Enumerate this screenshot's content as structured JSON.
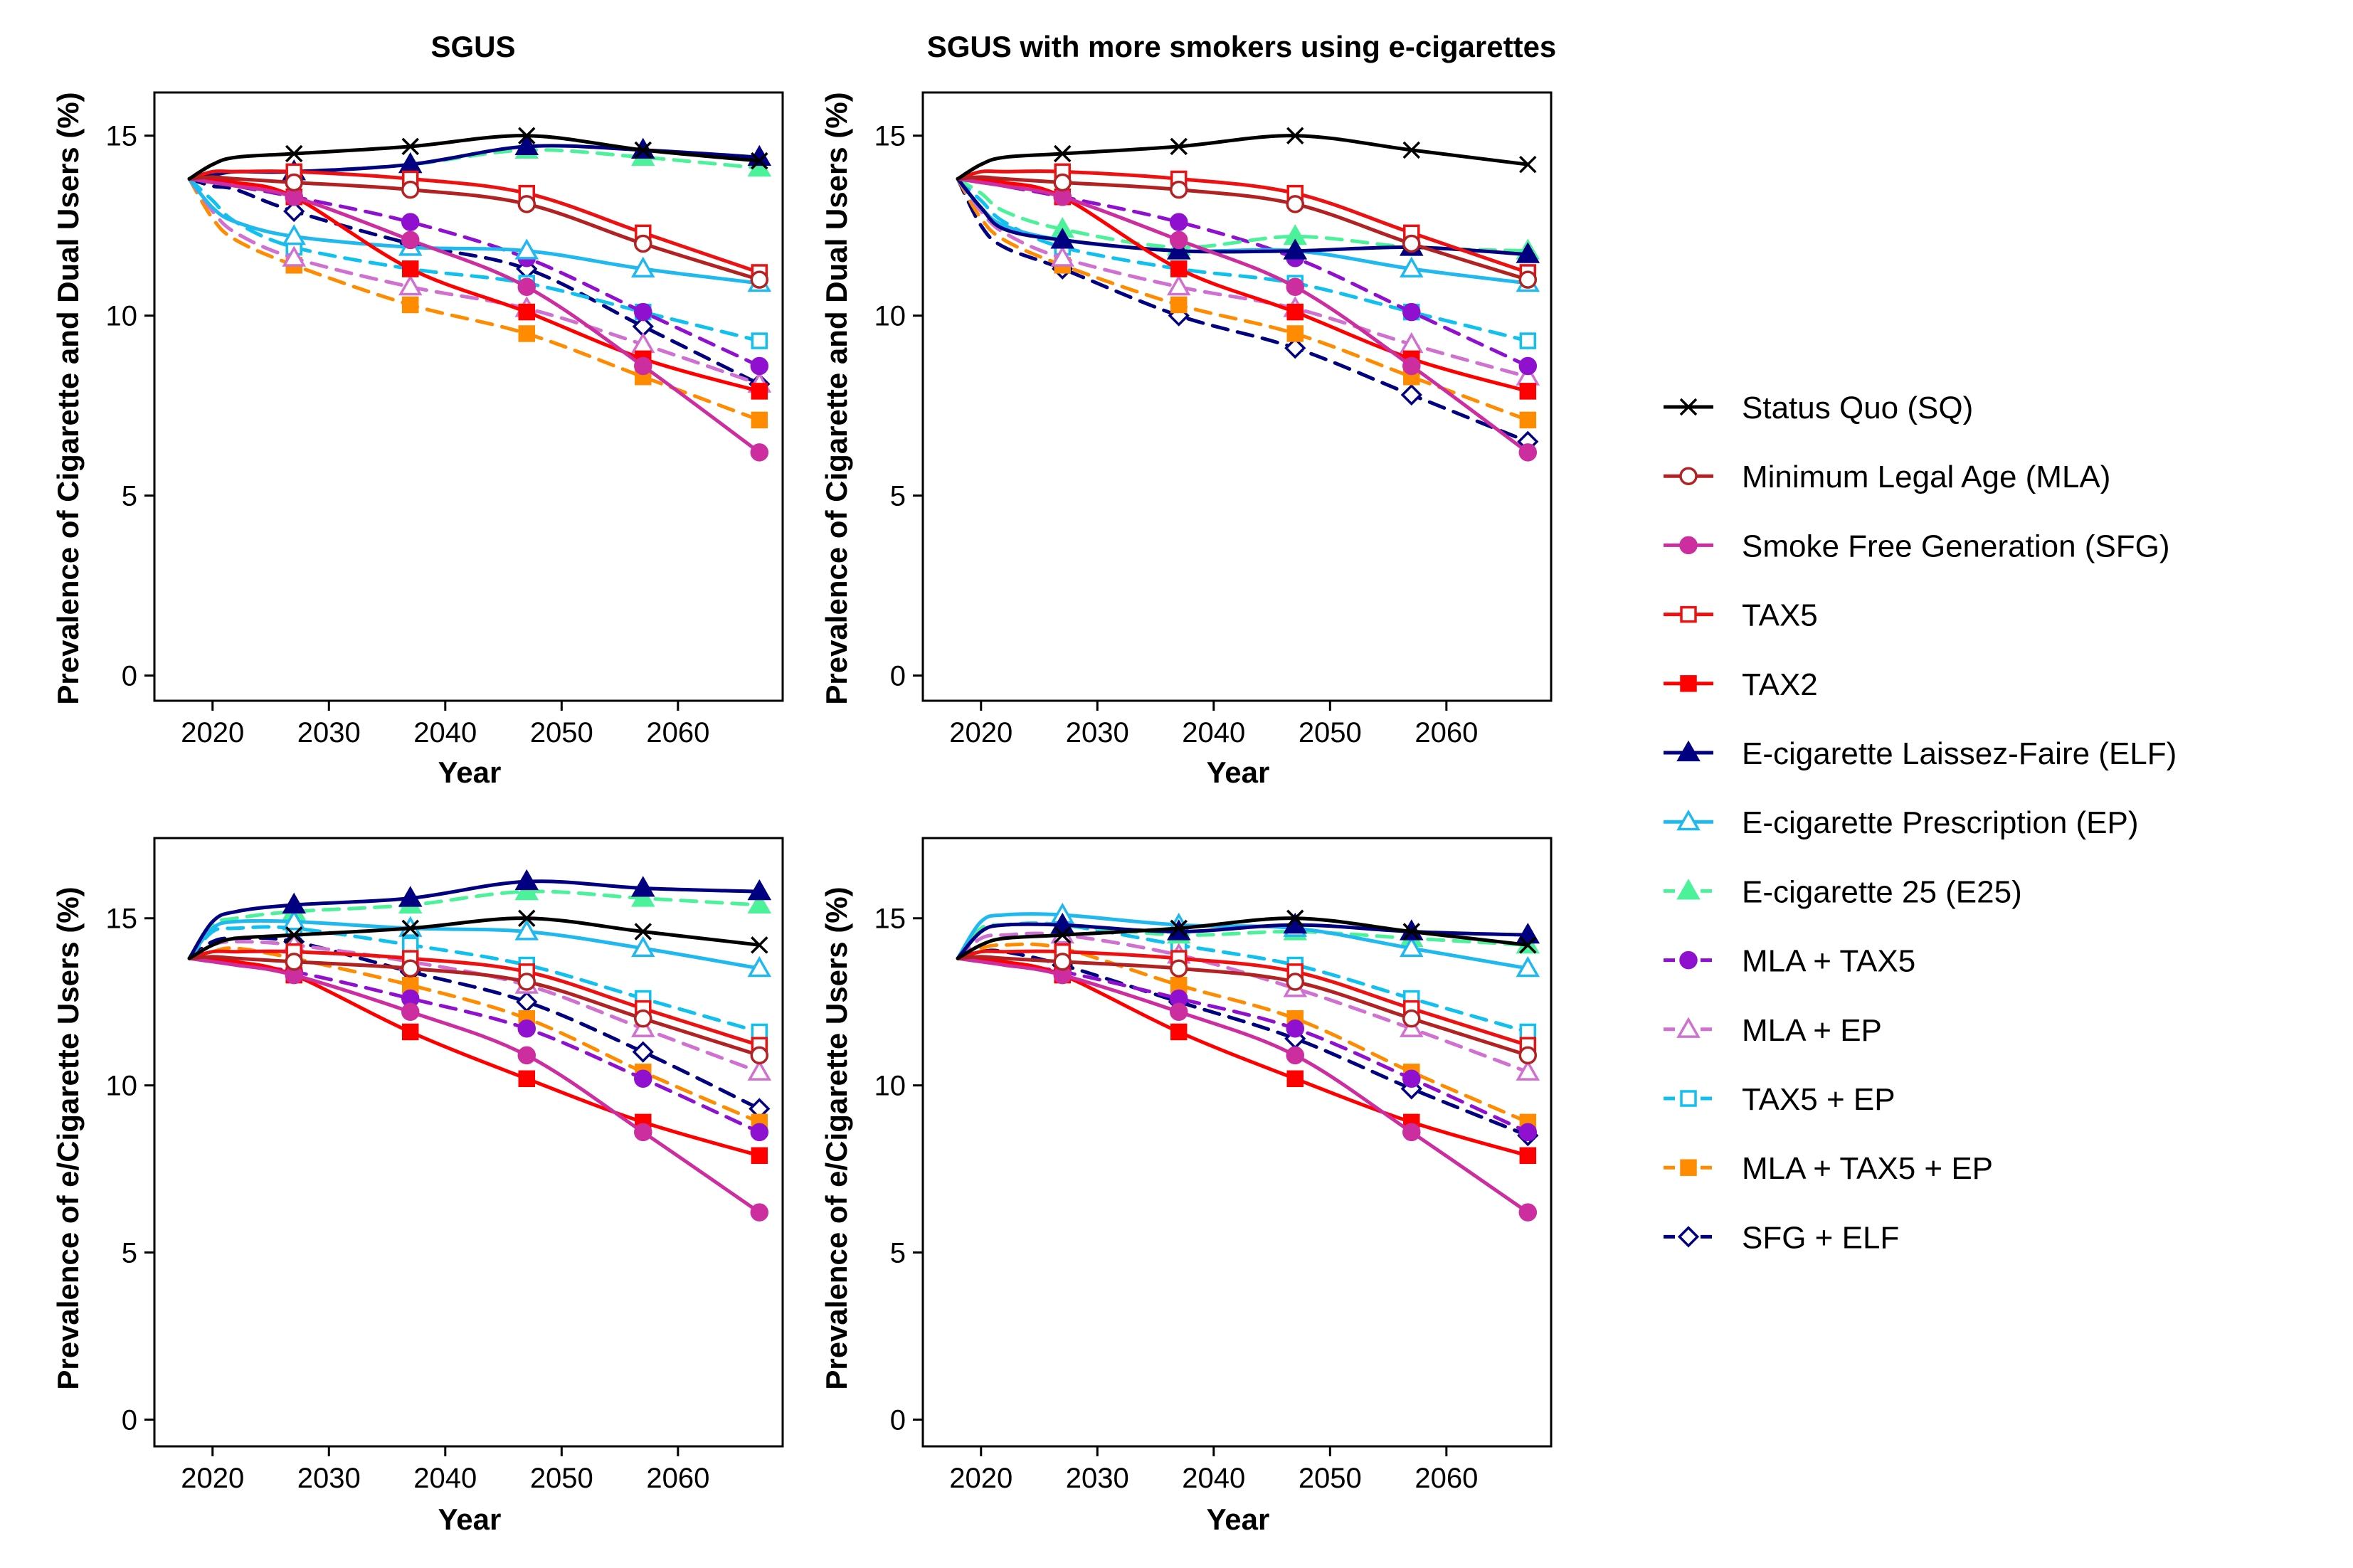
{
  "chart_data": {
    "type": "line",
    "x": [
      2018,
      2020,
      2022,
      2027,
      2037,
      2047,
      2057,
      2067
    ],
    "xlim": [
      2015,
      2069
    ],
    "xticks": [
      2020,
      2030,
      2040,
      2050,
      2060
    ],
    "yticks": [
      0,
      5,
      10,
      15
    ],
    "xlabel": "Year",
    "legend_position": "right",
    "legend": [
      {
        "key": "SQ",
        "label": "Status Quo (SQ)",
        "color": "#000000",
        "marker": "cross",
        "dash": false
      },
      {
        "key": "MLA",
        "label": "Minimum Legal Age (MLA)",
        "color": "#b22222",
        "marker": "circle-open",
        "dash": false
      },
      {
        "key": "SFG",
        "label": "Smoke Free Generation (SFG)",
        "color": "#cc2ea0",
        "marker": "circle-filled",
        "dash": false
      },
      {
        "key": "TAX5",
        "label": "TAX5",
        "color": "#ee1111",
        "marker": "square-open",
        "dash": false
      },
      {
        "key": "TAX2",
        "label": "TAX2",
        "color": "#ff0000",
        "marker": "square-filled",
        "dash": false
      },
      {
        "key": "ELF",
        "label": "E-cigarette Laissez-Faire (ELF)",
        "color": "#000080",
        "marker": "triangle-filled",
        "dash": false
      },
      {
        "key": "EP",
        "label": "E-cigarette Prescription (EP)",
        "color": "#1fb8ef",
        "marker": "triangle-open",
        "dash": false
      },
      {
        "key": "E25",
        "label": "E-cigarette 25 (E25)",
        "color": "#4cf29a",
        "marker": "triangle-filled",
        "dash": true
      },
      {
        "key": "MLA_TAX5",
        "label": "MLA + TAX5",
        "color": "#9010d0",
        "marker": "circle-filled",
        "dash": true
      },
      {
        "key": "MLA_EP",
        "label": "MLA + EP",
        "color": "#d070d0",
        "marker": "triangle-open",
        "dash": true
      },
      {
        "key": "TAX5_EP",
        "label": "TAX5 + EP",
        "color": "#10c0ee",
        "marker": "square-open",
        "dash": true
      },
      {
        "key": "MLA_TAX5_EP",
        "label": "MLA + TAX5 + EP",
        "color": "#ff8c00",
        "marker": "square-filled",
        "dash": true
      },
      {
        "key": "SFG_ELF",
        "label": "SFG + ELF",
        "color": "#000080",
        "marker": "diamond-open",
        "dash": true
      }
    ],
    "panels": [
      {
        "title": "SGUS",
        "ylabel": "Prevalence of Cigarette and Dual Users (%)",
        "ylim": [
          -0.7,
          16.2
        ],
        "series": {
          "SQ": [
            13.8,
            14.2,
            14.4,
            14.5,
            14.7,
            15.0,
            14.6,
            14.3
          ],
          "MLA": [
            13.8,
            13.85,
            13.8,
            13.7,
            13.5,
            13.1,
            12.0,
            11.0
          ],
          "SFG": [
            13.8,
            13.7,
            13.6,
            13.3,
            12.1,
            10.8,
            8.6,
            6.2
          ],
          "TAX5": [
            13.8,
            14.0,
            14.0,
            14.0,
            13.8,
            13.4,
            12.3,
            11.2
          ],
          "TAX2": [
            13.8,
            13.8,
            13.7,
            13.3,
            11.3,
            10.1,
            8.8,
            7.9
          ],
          "ELF": [
            13.8,
            13.9,
            14.0,
            14.0,
            14.2,
            14.7,
            14.6,
            14.4
          ],
          "EP": [
            13.8,
            13.0,
            12.6,
            12.2,
            11.9,
            11.8,
            11.3,
            10.9
          ],
          "E25": [
            13.8,
            13.9,
            14.0,
            14.0,
            14.2,
            14.6,
            14.4,
            14.1
          ],
          "MLA_TAX5": [
            13.8,
            13.75,
            13.6,
            13.3,
            12.6,
            11.6,
            10.1,
            8.6
          ],
          "MLA_EP": [
            13.8,
            12.9,
            12.3,
            11.6,
            10.8,
            10.2,
            9.2,
            8.1
          ],
          "TAX5_EP": [
            13.8,
            13.2,
            12.6,
            11.9,
            11.3,
            10.9,
            10.1,
            9.3
          ],
          "MLA_TAX5_EP": [
            13.8,
            12.7,
            12.1,
            11.4,
            10.3,
            9.5,
            8.3,
            7.1
          ],
          "SFG_ELF": [
            13.8,
            13.6,
            13.5,
            12.9,
            12.0,
            11.3,
            9.7,
            8.1
          ]
        }
      },
      {
        "title": "SGUS with more smokers using e-cigarettes",
        "ylabel": "Prevalence of Cigarette and Dual Users (%)",
        "ylim": [
          -0.7,
          16.2
        ],
        "series": {
          "SQ": [
            13.8,
            14.2,
            14.4,
            14.5,
            14.7,
            15.0,
            14.6,
            14.2
          ],
          "MLA": [
            13.8,
            13.85,
            13.8,
            13.7,
            13.5,
            13.1,
            12.0,
            11.0
          ],
          "SFG": [
            13.8,
            13.7,
            13.6,
            13.3,
            12.1,
            10.8,
            8.6,
            6.2
          ],
          "TAX5": [
            13.8,
            14.0,
            14.0,
            14.0,
            13.8,
            13.4,
            12.3,
            11.2
          ],
          "TAX2": [
            13.8,
            13.8,
            13.7,
            13.3,
            11.3,
            10.1,
            8.8,
            7.9
          ],
          "ELF": [
            13.8,
            13.0,
            12.4,
            12.1,
            11.8,
            11.8,
            11.9,
            11.7
          ],
          "EP": [
            13.8,
            13.0,
            12.5,
            12.1,
            11.8,
            11.8,
            11.3,
            10.9
          ],
          "E25": [
            13.8,
            13.4,
            12.9,
            12.4,
            11.9,
            12.2,
            11.9,
            11.8
          ],
          "MLA_TAX5": [
            13.8,
            13.75,
            13.6,
            13.3,
            12.6,
            11.6,
            10.1,
            8.6
          ],
          "MLA_EP": [
            13.8,
            12.9,
            12.3,
            11.6,
            10.8,
            10.2,
            9.2,
            8.3
          ],
          "TAX5_EP": [
            13.8,
            13.2,
            12.6,
            11.9,
            11.3,
            10.9,
            10.1,
            9.3
          ],
          "MLA_TAX5_EP": [
            13.8,
            12.7,
            12.1,
            11.4,
            10.3,
            9.5,
            8.3,
            7.1
          ],
          "SFG_ELF": [
            13.8,
            12.5,
            11.9,
            11.3,
            10.0,
            9.1,
            7.8,
            6.5
          ]
        }
      },
      {
        "title": "",
        "ylabel": "Prevalence of e/Cigarette Users (%)",
        "ylim": [
          -0.8,
          17.4
        ],
        "series": {
          "SQ": [
            13.8,
            14.2,
            14.4,
            14.5,
            14.7,
            15.0,
            14.6,
            14.2
          ],
          "MLA": [
            13.8,
            13.85,
            13.8,
            13.7,
            13.5,
            13.1,
            12.0,
            10.9
          ],
          "SFG": [
            13.8,
            13.7,
            13.6,
            13.3,
            12.2,
            10.9,
            8.6,
            6.2
          ],
          "TAX5": [
            13.8,
            14.0,
            14.0,
            14.0,
            13.8,
            13.4,
            12.3,
            11.2
          ],
          "TAX2": [
            13.8,
            13.8,
            13.7,
            13.3,
            11.6,
            10.2,
            8.9,
            7.9
          ],
          "ELF": [
            13.8,
            14.9,
            15.2,
            15.4,
            15.6,
            16.1,
            15.9,
            15.8
          ],
          "EP": [
            13.8,
            14.7,
            14.9,
            14.9,
            14.7,
            14.6,
            14.1,
            13.5
          ],
          "E25": [
            13.8,
            14.8,
            15.0,
            15.2,
            15.4,
            15.8,
            15.6,
            15.4
          ],
          "MLA_TAX5": [
            13.8,
            13.75,
            13.6,
            13.4,
            12.6,
            11.7,
            10.2,
            8.6
          ],
          "MLA_EP": [
            13.8,
            14.2,
            14.3,
            14.2,
            13.7,
            13.0,
            11.7,
            10.4
          ],
          "TAX5_EP": [
            13.8,
            14.6,
            14.7,
            14.7,
            14.2,
            13.6,
            12.6,
            11.6
          ],
          "MLA_TAX5_EP": [
            13.8,
            14.0,
            14.1,
            13.8,
            13.0,
            12.0,
            10.4,
            8.9
          ],
          "SFG_ELF": [
            13.8,
            14.3,
            14.4,
            14.3,
            13.4,
            12.5,
            11.0,
            9.3
          ]
        }
      },
      {
        "title": "",
        "ylabel": "Prevalence of e/Cigarette Users (%)",
        "ylim": [
          -0.8,
          17.4
        ],
        "series": {
          "SQ": [
            13.8,
            14.2,
            14.4,
            14.5,
            14.7,
            15.0,
            14.6,
            14.2
          ],
          "MLA": [
            13.8,
            13.85,
            13.8,
            13.7,
            13.5,
            13.1,
            12.0,
            10.9
          ],
          "SFG": [
            13.8,
            13.7,
            13.6,
            13.3,
            12.2,
            10.9,
            8.6,
            6.2
          ],
          "TAX5": [
            13.8,
            14.0,
            14.0,
            14.0,
            13.8,
            13.4,
            12.3,
            11.2
          ],
          "TAX2": [
            13.8,
            13.8,
            13.7,
            13.3,
            11.6,
            10.2,
            8.9,
            7.9
          ],
          "ELF": [
            13.8,
            14.6,
            14.8,
            14.8,
            14.6,
            14.8,
            14.6,
            14.5
          ],
          "EP": [
            13.8,
            14.9,
            15.1,
            15.1,
            14.8,
            14.7,
            14.1,
            13.5
          ],
          "E25": [
            13.8,
            14.7,
            14.8,
            14.8,
            14.5,
            14.6,
            14.4,
            14.2
          ],
          "MLA_TAX5": [
            13.8,
            13.75,
            13.6,
            13.4,
            12.6,
            11.7,
            10.2,
            8.6
          ],
          "MLA_EP": [
            13.8,
            14.4,
            14.5,
            14.5,
            13.9,
            12.9,
            11.7,
            10.4
          ],
          "TAX5_EP": [
            13.8,
            14.6,
            14.8,
            14.8,
            14.2,
            13.6,
            12.6,
            11.6
          ],
          "MLA_TAX5_EP": [
            13.8,
            14.1,
            14.2,
            14.1,
            13.0,
            12.0,
            10.4,
            8.9
          ],
          "SFG_ELF": [
            13.8,
            14.0,
            14.0,
            13.6,
            12.5,
            11.4,
            9.9,
            8.5
          ]
        }
      }
    ]
  }
}
